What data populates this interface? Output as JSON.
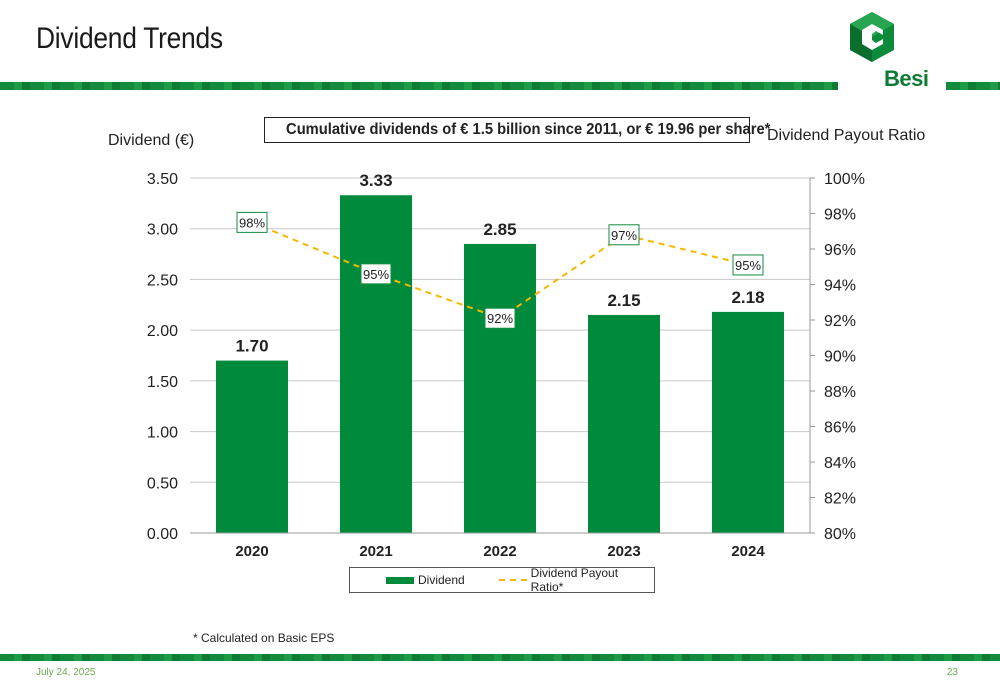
{
  "page": {
    "title": "Dividend Trends",
    "logo_text": "Besi",
    "footnote": "* Calculated on Basic EPS",
    "date": "July 24, 2025",
    "page_number": "23"
  },
  "colors": {
    "brand_green": "#0d7a35",
    "bar_green": "#008a3b",
    "line_yellow": "#f5b800"
  },
  "chart_data": {
    "type": "bar",
    "callout": "Cumulative dividends of € 1.5 billion since 2011, or € 19.96 per share*",
    "ylabel": "Dividend (€)",
    "y2label": "Dividend Payout Ratio",
    "categories": [
      "2020",
      "2021",
      "2022",
      "2023",
      "2024"
    ],
    "ylim": [
      0,
      3.5
    ],
    "y_ticks": [
      "0.00",
      "0.50",
      "1.00",
      "1.50",
      "2.00",
      "2.50",
      "3.00",
      "3.50"
    ],
    "y2lim": [
      80,
      100
    ],
    "y2_ticks": [
      "80%",
      "82%",
      "84%",
      "86%",
      "88%",
      "90%",
      "92%",
      "94%",
      "96%",
      "98%",
      "100%"
    ],
    "grid": true,
    "legend_position": "bottom",
    "series": [
      {
        "name": "Dividend",
        "type": "bar",
        "axis": "left",
        "values": [
          1.7,
          3.33,
          2.85,
          2.15,
          2.18
        ],
        "labels": [
          "1.70",
          "3.33",
          "2.85",
          "2.15",
          "2.18"
        ]
      },
      {
        "name": "Dividend Payout Ratio*",
        "type": "line",
        "style": "dashed",
        "axis": "right",
        "values": [
          97.5,
          94.6,
          92.1,
          96.8,
          95.1
        ],
        "labels": [
          "98%",
          "95%",
          "92%",
          "97%",
          "95%"
        ]
      }
    ]
  }
}
